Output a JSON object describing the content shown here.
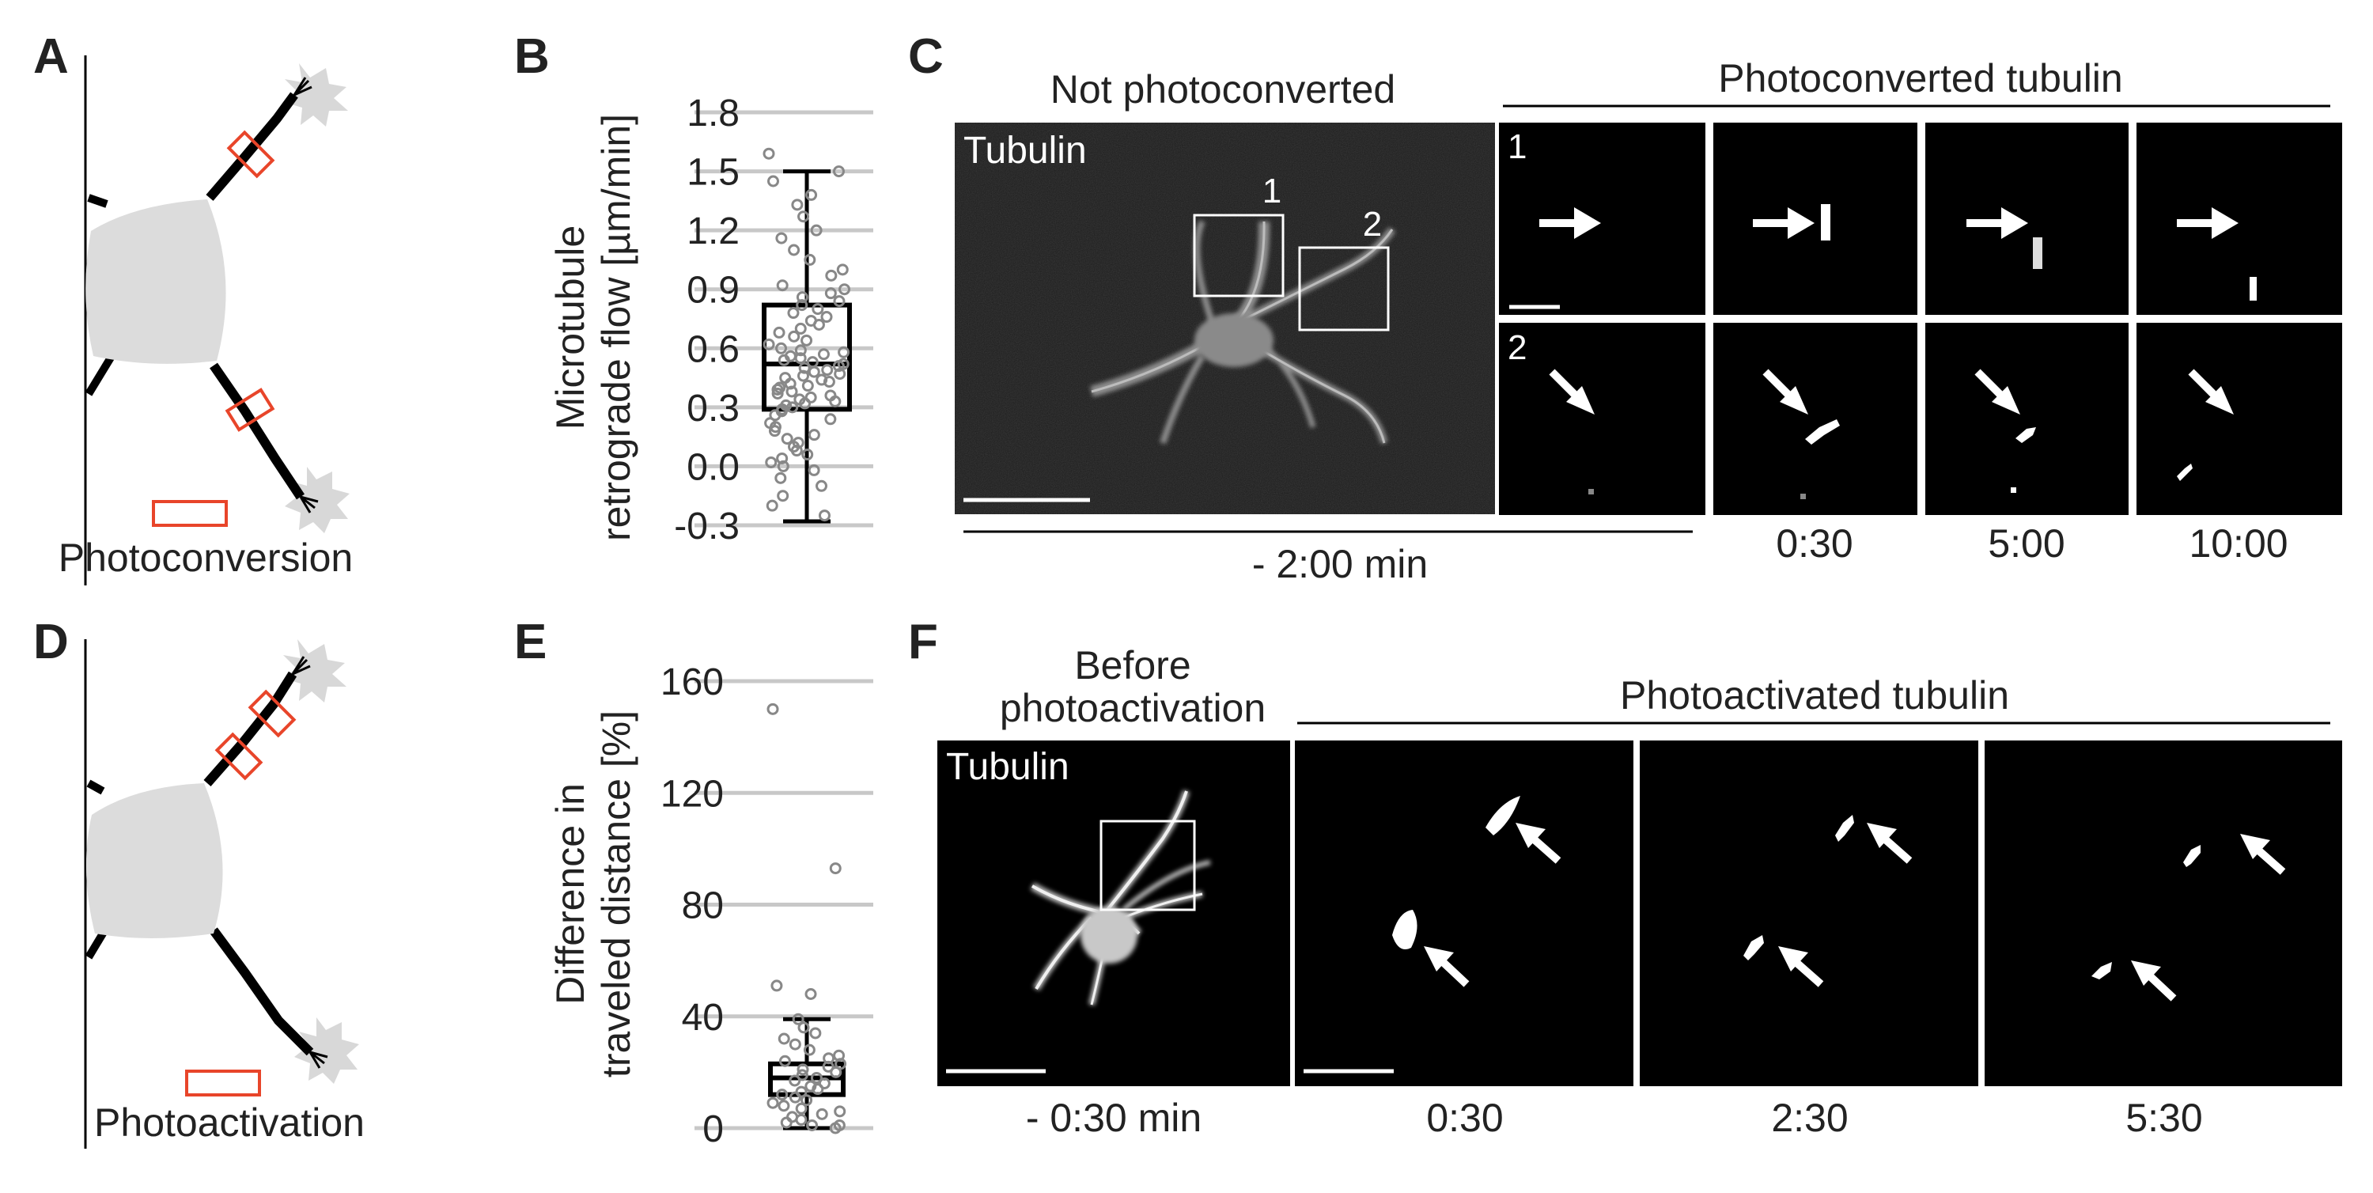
{
  "panels": {
    "A": {
      "letter": "A",
      "label": "Photoconversion"
    },
    "B": {
      "letter": "B",
      "ylabel_line1": "Microtubule",
      "ylabel_line2": "retrograde flow [µm/min]",
      "ticks": [
        "-0.3",
        "0.0",
        "0.3",
        "0.6",
        "0.9",
        "1.2",
        "1.5",
        "1.8"
      ]
    },
    "C": {
      "letter": "C",
      "overview_title": "Not photoconverted",
      "overview_channel": "Tubulin",
      "roi_labels": [
        "1",
        "2"
      ],
      "series_title": "Photoconverted tubulin",
      "row_labels": [
        "1",
        "2"
      ],
      "overview_time": "- 2:00 min",
      "times": [
        "0:30",
        "5:00",
        "10:00"
      ]
    },
    "D": {
      "letter": "D",
      "label": "Photoactivation"
    },
    "E": {
      "letter": "E",
      "ylabel_line1": "Difference in",
      "ylabel_line2": "traveled distance [%]",
      "ticks": [
        "0",
        "40",
        "80",
        "120",
        "160"
      ]
    },
    "F": {
      "letter": "F",
      "overview_title_line1": "Before",
      "overview_title_line2": "photoactivation",
      "overview_channel": "Tubulin",
      "series_title": "Photoactivated tubulin",
      "overview_time": "- 0:30 min",
      "times": [
        "0:30",
        "2:30",
        "5:30"
      ]
    }
  },
  "chart_data": [
    {
      "type": "box",
      "panel": "B",
      "ylabel": "Microtubule retrograde flow [µm/min]",
      "ylim": [
        -0.3,
        1.8
      ],
      "yticks": [
        -0.3,
        0.0,
        0.3,
        0.6,
        0.9,
        1.2,
        1.5,
        1.8
      ],
      "grid": true,
      "box": {
        "whisker_low": -0.28,
        "q1": 0.29,
        "median": 0.52,
        "q3": 0.82,
        "whisker_high": 1.5
      },
      "points": [
        1.59,
        1.5,
        1.45,
        1.38,
        1.33,
        1.27,
        1.2,
        1.16,
        1.1,
        1.05,
        1.0,
        0.97,
        0.92,
        0.9,
        0.88,
        0.86,
        0.84,
        0.82,
        0.8,
        0.78,
        0.76,
        0.74,
        0.72,
        0.7,
        0.68,
        0.66,
        0.64,
        0.62,
        0.6,
        0.59,
        0.58,
        0.57,
        0.56,
        0.55,
        0.54,
        0.53,
        0.52,
        0.51,
        0.5,
        0.49,
        0.48,
        0.47,
        0.46,
        0.45,
        0.44,
        0.43,
        0.42,
        0.41,
        0.4,
        0.39,
        0.38,
        0.37,
        0.36,
        0.35,
        0.34,
        0.33,
        0.32,
        0.31,
        0.3,
        0.29,
        0.28,
        0.26,
        0.24,
        0.22,
        0.2,
        0.18,
        0.16,
        0.14,
        0.12,
        0.1,
        0.08,
        0.06,
        0.04,
        0.02,
        0.0,
        -0.02,
        -0.06,
        -0.1,
        -0.15,
        -0.2,
        -0.25
      ]
    },
    {
      "type": "box",
      "panel": "E",
      "ylabel": "Difference in traveled distance [%]",
      "ylim": [
        0,
        160
      ],
      "yticks": [
        0,
        40,
        80,
        120,
        160
      ],
      "grid": true,
      "box": {
        "whisker_low": 0,
        "q1": 12,
        "median": 18,
        "q3": 23,
        "whisker_high": 39
      },
      "points": [
        150,
        93,
        51,
        48,
        39,
        36,
        34,
        32,
        30,
        28,
        26,
        25,
        24,
        23,
        22,
        21,
        20,
        19,
        18,
        17,
        16,
        15,
        14,
        13,
        12,
        11,
        10,
        9,
        8,
        7,
        6,
        5,
        4,
        3,
        2,
        1,
        1,
        0
      ]
    }
  ],
  "colors": {
    "roi_red": "#e8452a",
    "cell_gray": "#d8d8d8",
    "grid_gray": "#c8c8c8",
    "micro_black": "#000000",
    "point_gray": "#888888"
  }
}
